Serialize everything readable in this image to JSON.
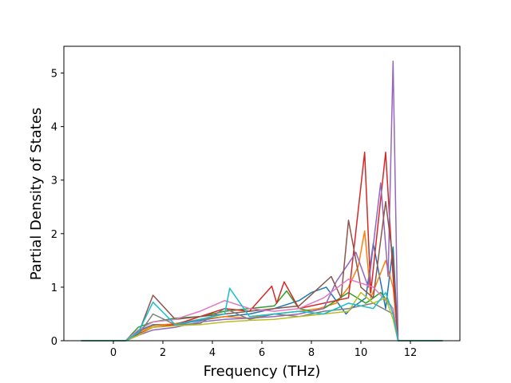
{
  "chart_data": {
    "type": "line",
    "title": "",
    "xlabel": "Frequency (THz)",
    "ylabel": "Partial Density of States",
    "xlim": [
      -2.0,
      14.0
    ],
    "ylim": [
      0,
      5.5
    ],
    "xticks": [
      0,
      2,
      4,
      6,
      8,
      10,
      12
    ],
    "xtick_labels": [
      "0",
      "2",
      "4",
      "6",
      "8",
      "10",
      "12"
    ],
    "yticks": [
      0,
      1,
      2,
      3,
      4,
      5
    ],
    "ytick_labels": [
      "0",
      "1",
      "2",
      "3",
      "4",
      "5"
    ],
    "grid": false,
    "legend": "none",
    "colors": [
      "#1f77b4",
      "#ff7f0e",
      "#2ca02c",
      "#d62728",
      "#9467bd",
      "#8c564b",
      "#e377c2",
      "#7f7f7f",
      "#bcbd22",
      "#17becf"
    ],
    "series": [
      {
        "x": [
          -1.3,
          0.5,
          1.0,
          1.6,
          2.5,
          3.5,
          4.5,
          5.5,
          6.5,
          7.5,
          8.0,
          8.6,
          9.4,
          9.6,
          10.2,
          10.5,
          11.0,
          11.3,
          11.5,
          13.3
        ],
        "values": [
          0,
          0,
          0.18,
          0.3,
          0.3,
          0.38,
          0.45,
          0.5,
          0.6,
          0.75,
          0.9,
          1.0,
          0.5,
          0.6,
          0.8,
          1.82,
          0.6,
          1.75,
          0,
          0
        ]
      },
      {
        "x": [
          -1.3,
          0.5,
          1.0,
          1.6,
          2.5,
          3.5,
          4.5,
          5.5,
          6.5,
          7.5,
          8.3,
          9.0,
          9.5,
          9.9,
          10.15,
          10.4,
          11.0,
          11.3,
          11.5,
          13.3
        ],
        "values": [
          0,
          0,
          0.15,
          0.28,
          0.32,
          0.4,
          0.45,
          0.42,
          0.5,
          0.55,
          0.6,
          0.7,
          1.0,
          1.4,
          2.05,
          0.8,
          1.5,
          1.0,
          0,
          0
        ]
      },
      {
        "x": [
          -1.3,
          0.5,
          1.0,
          1.6,
          2.5,
          3.5,
          4.5,
          5.5,
          6.5,
          7.0,
          7.5,
          8.0,
          8.5,
          9.5,
          10.2,
          10.8,
          11.3,
          11.5,
          13.3
        ],
        "values": [
          0,
          0,
          0.25,
          0.35,
          0.42,
          0.45,
          0.55,
          0.6,
          0.65,
          0.93,
          0.6,
          0.55,
          0.6,
          0.9,
          0.7,
          0.9,
          0.6,
          0,
          0
        ]
      },
      {
        "x": [
          -1.3,
          0.5,
          1.0,
          1.6,
          2.5,
          3.5,
          4.5,
          5.5,
          6.4,
          6.6,
          6.9,
          7.5,
          8.5,
          9.5,
          10.15,
          10.4,
          11.0,
          11.3,
          11.5,
          13.3
        ],
        "values": [
          0,
          0,
          0.12,
          0.25,
          0.3,
          0.45,
          0.6,
          0.55,
          1.02,
          0.7,
          1.1,
          0.6,
          0.7,
          0.8,
          3.52,
          0.9,
          3.52,
          1.2,
          0,
          0
        ]
      },
      {
        "x": [
          -1.3,
          0.5,
          1.0,
          1.6,
          2.5,
          3.5,
          4.5,
          5.5,
          6.5,
          7.5,
          8.5,
          9.0,
          9.8,
          10.3,
          10.8,
          11.1,
          11.3,
          11.5,
          13.3
        ],
        "values": [
          0,
          0,
          0.1,
          0.2,
          0.25,
          0.35,
          0.4,
          0.42,
          0.45,
          0.5,
          0.6,
          1.1,
          1.65,
          1.0,
          2.95,
          1.2,
          5.22,
          0,
          0
        ]
      },
      {
        "x": [
          -1.3,
          0.5,
          1.0,
          1.6,
          2.5,
          3.5,
          4.5,
          5.5,
          6.5,
          7.5,
          8.8,
          9.2,
          9.5,
          10.0,
          10.5,
          11.0,
          11.3,
          11.5,
          13.3
        ],
        "values": [
          0,
          0,
          0.12,
          0.85,
          0.4,
          0.45,
          0.5,
          0.55,
          0.6,
          0.65,
          1.2,
          0.8,
          2.25,
          1.0,
          0.8,
          2.6,
          1.5,
          0,
          0
        ]
      },
      {
        "x": [
          -1.3,
          0.5,
          1.0,
          1.6,
          2.5,
          3.5,
          4.5,
          5.5,
          6.5,
          7.5,
          8.5,
          9.5,
          10.5,
          11.3,
          11.5,
          13.3
        ],
        "values": [
          0,
          0,
          0.2,
          0.35,
          0.4,
          0.55,
          0.75,
          0.6,
          0.55,
          0.6,
          0.8,
          1.15,
          1.0,
          0.6,
          0,
          0
        ]
      },
      {
        "x": [
          -1.3,
          0.5,
          1.0,
          1.6,
          2.5,
          3.5,
          4.5,
          5.5,
          6.5,
          7.5,
          8.5,
          9.5,
          10.5,
          11.3,
          11.5,
          13.3
        ],
        "values": [
          0,
          0,
          0.1,
          0.5,
          0.3,
          0.32,
          0.6,
          0.4,
          0.5,
          0.45,
          0.55,
          0.6,
          0.7,
          0.5,
          0,
          0
        ]
      },
      {
        "x": [
          -1.3,
          0.5,
          1.0,
          1.6,
          2.5,
          3.5,
          4.5,
          5.5,
          6.5,
          7.5,
          8.5,
          9.5,
          10.0,
          10.5,
          11.0,
          11.3,
          11.5,
          13.3
        ],
        "values": [
          0,
          0,
          0.1,
          0.25,
          0.28,
          0.3,
          0.35,
          0.38,
          0.4,
          0.45,
          0.5,
          0.55,
          0.9,
          0.7,
          0.8,
          0.4,
          0,
          0
        ]
      },
      {
        "x": [
          -1.3,
          0.5,
          1.0,
          1.6,
          2.5,
          3.5,
          4.5,
          4.7,
          5.5,
          6.5,
          7.5,
          8.5,
          9.5,
          10.5,
          11.0,
          11.3,
          11.5,
          13.3
        ],
        "values": [
          0,
          0,
          0.15,
          0.72,
          0.3,
          0.4,
          0.5,
          0.98,
          0.45,
          0.5,
          0.55,
          0.5,
          0.7,
          0.6,
          0.9,
          0.5,
          0,
          0
        ]
      }
    ]
  }
}
